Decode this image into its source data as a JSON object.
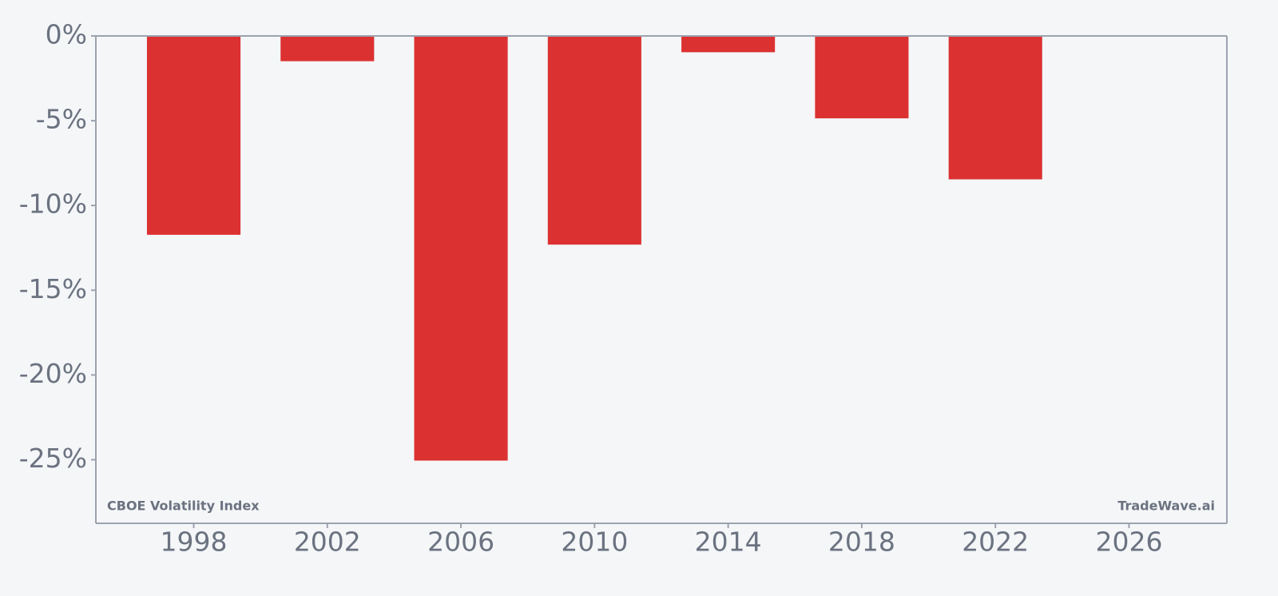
{
  "chart_data": {
    "type": "bar",
    "annotations": [
      "CBOE Volatility Index",
      "TradeWave.ai"
    ],
    "x": [
      1998,
      2002,
      2006,
      2010,
      2014,
      2018,
      2022
    ],
    "values": [
      -11.73,
      -1.49,
      -25.05,
      -12.31,
      -0.96,
      -4.86,
      -8.46
    ],
    "color": "#dc3131",
    "xlim": [
      1995.07,
      2028.93
    ],
    "xticks": [
      1998,
      2002,
      2006,
      2010,
      2014,
      2018,
      2022,
      2026
    ],
    "ylim": [
      -28.75,
      0
    ],
    "yticks": [
      {
        "value": 0,
        "label": "0%"
      },
      {
        "value": -5,
        "label": "-5%"
      },
      {
        "value": -10,
        "label": "-10%"
      },
      {
        "value": -15,
        "label": "-15%"
      },
      {
        "value": -20,
        "label": "-20%"
      },
      {
        "value": -25,
        "label": "-25%"
      }
    ],
    "grid": false
  }
}
